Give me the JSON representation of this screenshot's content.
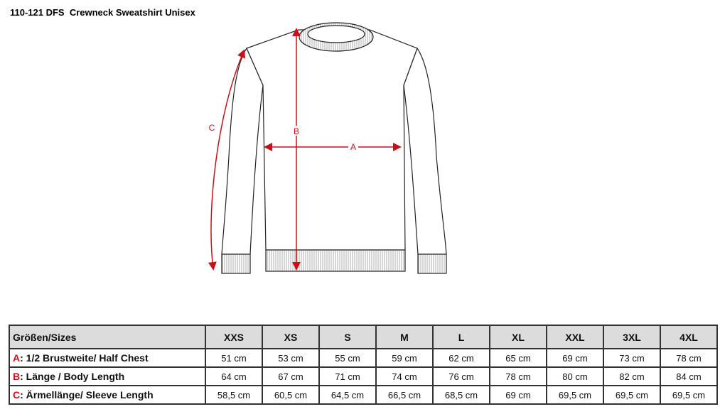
{
  "title": "110-121 DFS  Crewneck Sweatshirt Unisex",
  "diagram": {
    "labels": {
      "a": "A",
      "b": "B",
      "c": "C"
    },
    "arrow_color": "#c8101a"
  },
  "table": {
    "header": "Größen/Sizes",
    "sizes": [
      "XXS",
      "XS",
      "S",
      "M",
      "L",
      "XL",
      "XXL",
      "3XL",
      "4XL"
    ],
    "rows": [
      {
        "letter": "A",
        "label": ": 1/2 Brustweite/ Half Chest",
        "values": [
          "51 cm",
          "53 cm",
          "55 cm",
          "59 cm",
          "62 cm",
          "65 cm",
          "69 cm",
          "73 cm",
          "78 cm"
        ]
      },
      {
        "letter": "B",
        "label": ": Länge / Body Length",
        "values": [
          "64 cm",
          "67 cm",
          "71 cm",
          "74 cm",
          "76 cm",
          "78 cm",
          "80 cm",
          "82 cm",
          "84 cm"
        ]
      },
      {
        "letter": "C",
        "label": ": Ärmellänge/ Sleeve Length",
        "values": [
          "58,5 cm",
          "60,5 cm",
          "64,5 cm",
          "66,5 cm",
          "68,5 cm",
          "69 cm",
          "69,5 cm",
          "69,5 cm",
          "69,5 cm"
        ]
      }
    ]
  }
}
